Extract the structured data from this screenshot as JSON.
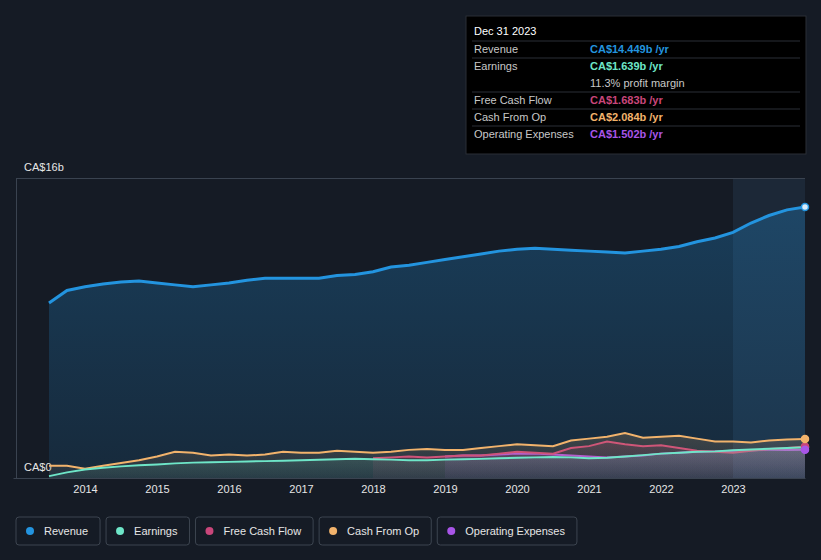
{
  "chart_data": {
    "type": "line",
    "x": [
      2013.5,
      2013.75,
      2014,
      2014.25,
      2014.5,
      2014.75,
      2015,
      2015.25,
      2015.5,
      2015.75,
      2016,
      2016.25,
      2016.5,
      2016.75,
      2017,
      2017.25,
      2017.5,
      2017.75,
      2018,
      2018.25,
      2018.5,
      2018.75,
      2019,
      2019.25,
      2019.5,
      2019.75,
      2020,
      2020.25,
      2020.5,
      2020.75,
      2021,
      2021.25,
      2021.5,
      2021.75,
      2022,
      2022.25,
      2022.5,
      2022.75,
      2023,
      2023.25,
      2023.5,
      2023.75,
      2024
    ],
    "series": [
      {
        "name": "Revenue",
        "color": "#2394df",
        "values": [
          9.33,
          10.0,
          10.2,
          10.35,
          10.45,
          10.5,
          10.4,
          10.3,
          10.2,
          10.3,
          10.4,
          10.55,
          10.65,
          10.65,
          10.65,
          10.65,
          10.8,
          10.85,
          11.0,
          11.25,
          11.35,
          11.5,
          11.65,
          11.8,
          11.95,
          12.1,
          12.2,
          12.25,
          12.2,
          12.15,
          12.1,
          12.05,
          12.0,
          12.1,
          12.2,
          12.35,
          12.6,
          12.8,
          13.1,
          13.6,
          14.0,
          14.3,
          14.449
        ]
      },
      {
        "name": "Earnings",
        "color": "#6ee6c8",
        "values": [
          0.1,
          0.3,
          0.45,
          0.55,
          0.62,
          0.68,
          0.72,
          0.78,
          0.82,
          0.84,
          0.86,
          0.88,
          0.9,
          0.92,
          0.95,
          0.97,
          1.0,
          1.02,
          1.0,
          0.98,
          0.95,
          0.95,
          0.98,
          1.0,
          1.02,
          1.05,
          1.08,
          1.1,
          1.12,
          1.1,
          1.05,
          1.08,
          1.15,
          1.22,
          1.3,
          1.35,
          1.4,
          1.42,
          1.48,
          1.52,
          1.56,
          1.6,
          1.639
        ]
      },
      {
        "name": "Free Cash Flow",
        "color": "#c9467a",
        "values": [
          null,
          null,
          null,
          null,
          null,
          null,
          null,
          null,
          null,
          null,
          null,
          null,
          null,
          null,
          null,
          null,
          null,
          null,
          1.05,
          1.1,
          1.15,
          1.1,
          1.15,
          1.2,
          1.2,
          1.3,
          1.4,
          1.35,
          1.3,
          1.6,
          1.7,
          1.95,
          1.8,
          1.7,
          1.75,
          1.6,
          1.45,
          1.4,
          1.35,
          1.45,
          1.55,
          1.6,
          1.683
        ]
      },
      {
        "name": "Cash From Op",
        "color": "#f2b36c",
        "values": [
          0.65,
          0.65,
          0.5,
          0.65,
          0.8,
          0.95,
          1.15,
          1.4,
          1.35,
          1.2,
          1.25,
          1.2,
          1.25,
          1.4,
          1.35,
          1.35,
          1.45,
          1.4,
          1.35,
          1.4,
          1.5,
          1.55,
          1.5,
          1.5,
          1.6,
          1.7,
          1.8,
          1.75,
          1.7,
          2.0,
          2.1,
          2.2,
          2.4,
          2.15,
          2.2,
          2.25,
          2.1,
          1.95,
          1.95,
          1.9,
          2.0,
          2.05,
          2.084
        ]
      },
      {
        "name": "Operating Expenses",
        "color": "#a855e8",
        "values": [
          null,
          null,
          null,
          null,
          null,
          null,
          null,
          null,
          null,
          null,
          null,
          null,
          null,
          null,
          null,
          null,
          null,
          null,
          null,
          null,
          null,
          null,
          1.15,
          1.2,
          1.2,
          1.25,
          1.3,
          1.3,
          1.25,
          1.2,
          1.15,
          1.1,
          1.15,
          1.2,
          1.3,
          1.35,
          1.4,
          1.42,
          1.45,
          1.48,
          1.5,
          1.5,
          1.502
        ]
      }
    ],
    "xlim": [
      2013,
      2024
    ],
    "xticks": [
      2014,
      2015,
      2016,
      2017,
      2018,
      2019,
      2020,
      2021,
      2022,
      2023
    ],
    "ylim": [
      0,
      16
    ],
    "yticks": [
      {
        "value": 0,
        "label": "CA$0"
      },
      {
        "value": 16,
        "label": "CA$16b"
      }
    ],
    "grid": true,
    "legend": "bottom-left",
    "shaded_range": [
      2023,
      2024
    ],
    "tooltip": {
      "date": "Dec 31 2023",
      "value_labels": [
        "CA$14.449b /yr",
        "CA$1.639b /yr",
        "CA$1.683b /yr",
        "CA$2.084b /yr",
        "CA$1.502b /yr"
      ],
      "note": "11.3% profit margin"
    }
  }
}
